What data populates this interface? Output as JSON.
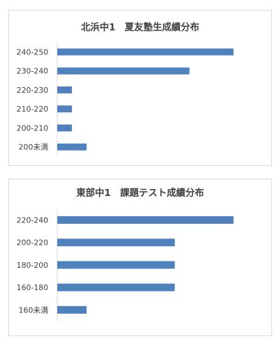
{
  "chart_data": [
    {
      "type": "bar",
      "orientation": "horizontal",
      "title": "北浜中1　夏友塾生成績分布",
      "categories": [
        "240-250",
        "230-240",
        "220-230",
        "210-220",
        "200-210",
        "200未満"
      ],
      "values": [
        12,
        9,
        1,
        1,
        1,
        2
      ],
      "xlim": [
        0,
        12
      ],
      "color": "#4f81bd",
      "grid": false,
      "xaxis_visible": false
    },
    {
      "type": "bar",
      "orientation": "horizontal",
      "title": "東部中1　課題テスト成績分布",
      "categories": [
        "220-240",
        "200-220",
        "180-200",
        "160-180",
        "160未満"
      ],
      "values": [
        6,
        4,
        4,
        4,
        1
      ],
      "xlim": [
        0,
        6
      ],
      "color": "#4f81bd",
      "grid": false,
      "xaxis_visible": false
    }
  ]
}
